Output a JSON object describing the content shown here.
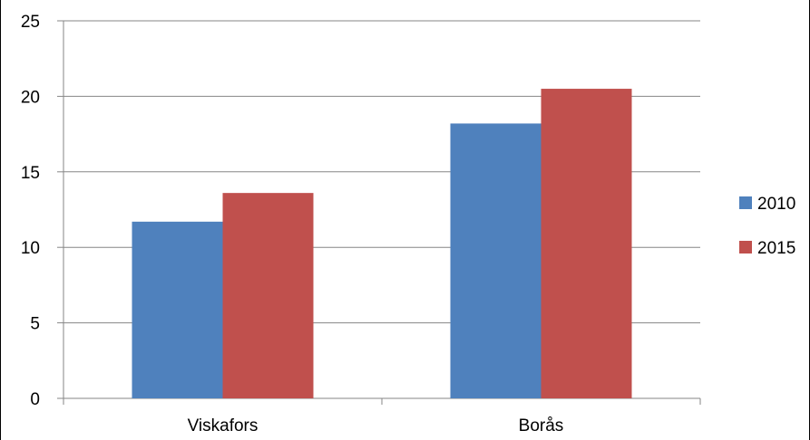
{
  "chart_data": {
    "type": "bar",
    "title": "",
    "xlabel": "",
    "ylabel": "",
    "categories": [
      "Viskafors",
      "Borås"
    ],
    "series": [
      {
        "name": "2010",
        "values": [
          11.7,
          18.2
        ],
        "color": "#4F81BD"
      },
      {
        "name": "2015",
        "values": [
          13.6,
          20.5
        ],
        "color": "#C0504D"
      }
    ],
    "ylim": [
      0,
      25
    ],
    "yticks": [
      0,
      5,
      10,
      15,
      20,
      25
    ],
    "grid": true,
    "legend": "right"
  }
}
